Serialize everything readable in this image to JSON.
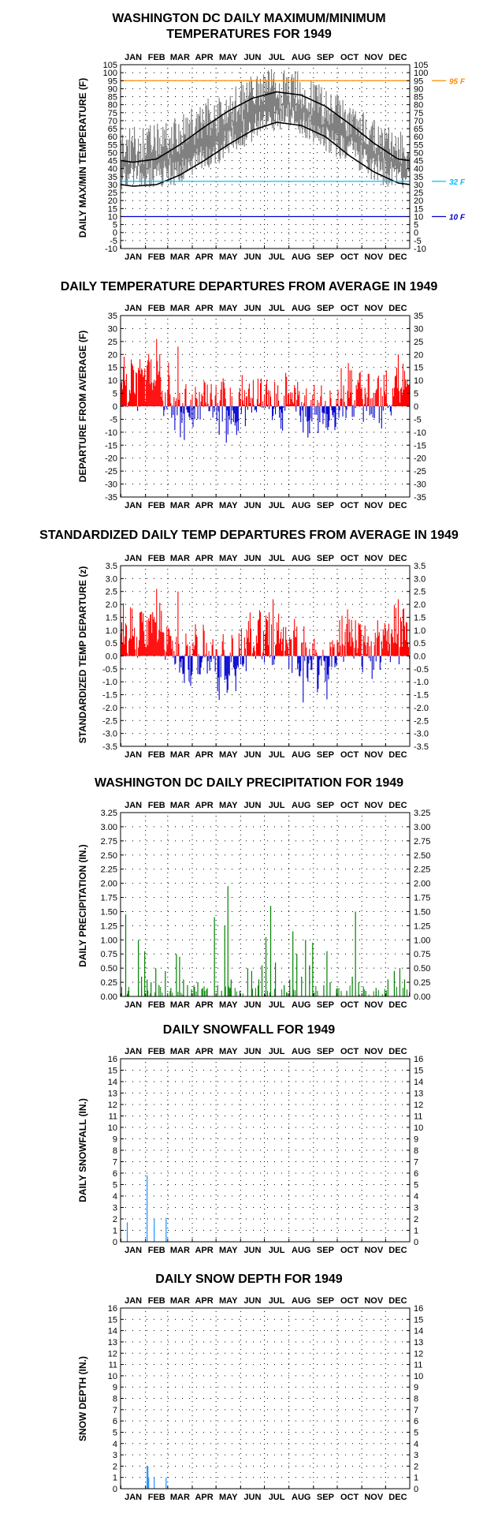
{
  "months": [
    "JAN",
    "FEB",
    "MAR",
    "APR",
    "MAY",
    "JUN",
    "JUL",
    "AUG",
    "SEP",
    "OCT",
    "NOV",
    "DEC"
  ],
  "colors": {
    "frame": "#000000",
    "grid_dot": "#000000",
    "max_series": "#808080",
    "normal_curve": "#000000",
    "ref_95": "#ff8c00",
    "ref_32": "#00bfff",
    "ref_10": "#0000cd",
    "above": "#ff0000",
    "below": "#0000cd",
    "precip": "#008000",
    "snow": "#1e90ff"
  },
  "chart_data": [
    {
      "id": "temps",
      "type": "line",
      "title": "WASHINGTON DC DAILY MAXIMUM/MINIMUM TEMPERATURES FOR 1949",
      "title_lines": [
        "WASHINGTON DC DAILY MAXIMUM/MINIMUM",
        "TEMPERATURES FOR 1949"
      ],
      "ylabel": "DAILY MAX/MIN TEMPERATURE (F)",
      "ylim": [
        -10,
        105
      ],
      "ytick_step": 5,
      "reference_lines": [
        {
          "value": 95,
          "label": "95 F",
          "color_key": "ref_95"
        },
        {
          "value": 32,
          "label": "32 F",
          "color_key": "ref_32"
        },
        {
          "value": 10,
          "label": "10 F",
          "color_key": "ref_10"
        }
      ],
      "series": [
        {
          "role": "daily_max_min_range",
          "note": "daily bars drawn from minimum to maximum",
          "monthly_avg_max": [
            53,
            55,
            60,
            70,
            76,
            87,
            90,
            88,
            79,
            71,
            60,
            50
          ],
          "monthly_avg_min": [
            36,
            37,
            39,
            46,
            56,
            66,
            72,
            70,
            59,
            52,
            41,
            34
          ]
        },
        {
          "role": "normal_max",
          "monthly": [
            44,
            46,
            55,
            66,
            76,
            84,
            88,
            86,
            79,
            68,
            56,
            46
          ]
        },
        {
          "role": "normal_min",
          "monthly": [
            29,
            30,
            36,
            45,
            55,
            64,
            69,
            67,
            60,
            48,
            38,
            31
          ]
        }
      ]
    },
    {
      "id": "departures",
      "type": "bar",
      "title": "DAILY TEMPERATURE DEPARTURES FROM AVERAGE IN 1949",
      "ylabel": "DEPARTURE FROM AVERAGE (F)",
      "ylim": [
        -35,
        35
      ],
      "ytick_step": 5,
      "monthly_pattern": [
        9,
        11,
        -3,
        2,
        -3,
        4,
        3,
        1,
        -3,
        6,
        1,
        8
      ],
      "spikes": [
        {
          "day": 45,
          "value": 26
        },
        {
          "day": 72,
          "value": 23
        },
        {
          "day": 80,
          "value": -13
        },
        {
          "day": 124,
          "value": -11
        },
        {
          "day": 230,
          "value": -10
        },
        {
          "day": 350,
          "value": 20
        }
      ]
    },
    {
      "id": "standardized",
      "type": "bar",
      "title": "STANDARDIZED DAILY TEMP DEPARTURES FROM AVERAGE IN 1949",
      "ylabel": "STANDARDIZED TEMP DEPARTURE (z)",
      "ylim": [
        -3.5,
        3.5
      ],
      "ytick_step": 0.5,
      "monthly_pattern": [
        1.0,
        1.2,
        -0.4,
        0.3,
        -0.6,
        0.6,
        0.7,
        0.2,
        -0.6,
        1.0,
        0.1,
        0.9
      ],
      "spikes": [
        {
          "day": 45,
          "value": 2.6
        },
        {
          "day": 72,
          "value": 2.5
        },
        {
          "day": 124,
          "value": -1.7
        },
        {
          "day": 230,
          "value": -1.8
        },
        {
          "day": 192,
          "value": 2.2
        },
        {
          "day": 350,
          "value": 2.2
        }
      ]
    },
    {
      "id": "precip",
      "type": "bar",
      "title": "WASHINGTON DC DAILY PRECIPITATION FOR 1949",
      "ylabel": "DAILY PRECIPITATION (IN.)",
      "ylim": [
        0,
        3.25
      ],
      "ytick_step": 0.25,
      "decimals": 2,
      "events": [
        {
          "day": 6,
          "value": 1.45
        },
        {
          "day": 9,
          "value": 0.1
        },
        {
          "day": 22,
          "value": 1.0
        },
        {
          "day": 26,
          "value": 0.35
        },
        {
          "day": 30,
          "value": 0.8
        },
        {
          "day": 33,
          "value": 0.3
        },
        {
          "day": 38,
          "value": 0.25
        },
        {
          "day": 44,
          "value": 0.5
        },
        {
          "day": 48,
          "value": 0.2
        },
        {
          "day": 56,
          "value": 0.45
        },
        {
          "day": 63,
          "value": 0.15
        },
        {
          "day": 70,
          "value": 0.75
        },
        {
          "day": 74,
          "value": 0.7
        },
        {
          "day": 79,
          "value": 0.3
        },
        {
          "day": 84,
          "value": 0.2
        },
        {
          "day": 97,
          "value": 0.25
        },
        {
          "day": 103,
          "value": 0.15
        },
        {
          "day": 118,
          "value": 1.4
        },
        {
          "day": 122,
          "value": 0.2
        },
        {
          "day": 127,
          "value": 0.1
        },
        {
          "day": 131,
          "value": 1.25
        },
        {
          "day": 135,
          "value": 1.95
        },
        {
          "day": 139,
          "value": 0.3
        },
        {
          "day": 150,
          "value": 0.1
        },
        {
          "day": 160,
          "value": 0.5
        },
        {
          "day": 165,
          "value": 0.45
        },
        {
          "day": 174,
          "value": 0.3
        },
        {
          "day": 178,
          "value": 0.55
        },
        {
          "day": 183,
          "value": 1.05
        },
        {
          "day": 189,
          "value": 1.6
        },
        {
          "day": 195,
          "value": 0.6
        },
        {
          "day": 206,
          "value": 0.2
        },
        {
          "day": 213,
          "value": 0.3
        },
        {
          "day": 217,
          "value": 1.15
        },
        {
          "day": 222,
          "value": 0.75
        },
        {
          "day": 228,
          "value": 0.35
        },
        {
          "day": 233,
          "value": 1.0
        },
        {
          "day": 238,
          "value": 0.55
        },
        {
          "day": 242,
          "value": 0.95
        },
        {
          "day": 256,
          "value": 0.2
        },
        {
          "day": 260,
          "value": 0.8
        },
        {
          "day": 264,
          "value": 0.25
        },
        {
          "day": 273,
          "value": 0.15
        },
        {
          "day": 285,
          "value": 0.1
        },
        {
          "day": 292,
          "value": 0.35
        },
        {
          "day": 296,
          "value": 1.5
        },
        {
          "day": 300,
          "value": 0.25
        },
        {
          "day": 309,
          "value": 0.1
        },
        {
          "day": 322,
          "value": 0.15
        },
        {
          "day": 337,
          "value": 0.3
        },
        {
          "day": 345,
          "value": 0.45
        },
        {
          "day": 352,
          "value": 0.5
        },
        {
          "day": 358,
          "value": 0.3
        }
      ]
    },
    {
      "id": "snowfall",
      "type": "bar",
      "title": "DAILY SNOWFALL FOR 1949",
      "ylabel": "DAILY SNOWFALL (IN.)",
      "ylim": [
        0,
        16
      ],
      "ytick_step": 1,
      "decimals": 0,
      "events": [
        {
          "day": 8,
          "value": 1.7
        },
        {
          "day": 33,
          "value": 5.8
        },
        {
          "day": 42,
          "value": 2.0
        },
        {
          "day": 57,
          "value": 2.1
        }
      ]
    },
    {
      "id": "snowdepth",
      "type": "bar",
      "title": "DAILY SNOW DEPTH FOR 1949",
      "ylabel": "SNOW DEPTH (IN.)",
      "ylim": [
        0,
        16
      ],
      "ytick_step": 1,
      "decimals": 0,
      "events": [
        {
          "day": 33,
          "value": 2.0
        },
        {
          "day": 34,
          "value": 2.0
        },
        {
          "day": 35,
          "value": 1.0
        },
        {
          "day": 42,
          "value": 1.0
        },
        {
          "day": 57,
          "value": 1.0
        }
      ]
    }
  ]
}
